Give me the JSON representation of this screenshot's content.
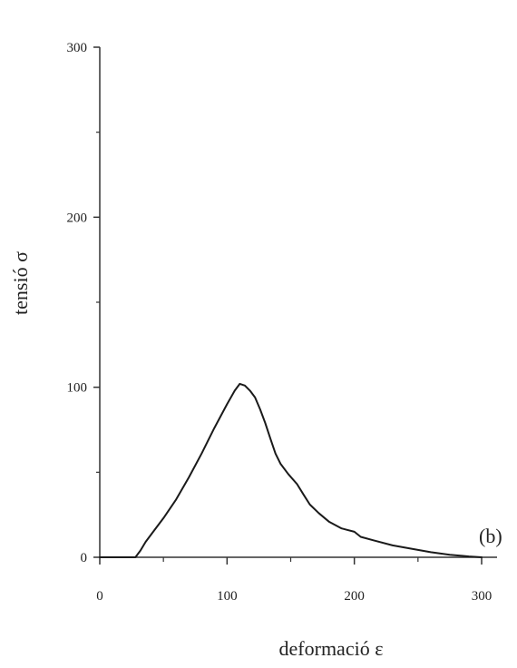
{
  "chart_data": {
    "type": "line",
    "xlabel": "deformació ε",
    "ylabel": "tensió σ",
    "annotation": "(b)",
    "xlim": [
      0,
      310
    ],
    "ylim": [
      0,
      300
    ],
    "x_ticks": [
      0,
      100,
      200,
      300
    ],
    "y_ticks": [
      0,
      100,
      200,
      300
    ],
    "x_minor_ticks": [
      50,
      150,
      250
    ],
    "y_minor_ticks": [
      50,
      150,
      250
    ],
    "grid": false,
    "series": [
      {
        "color": "#1a1a1a",
        "x": [
          0,
          10,
          20,
          28,
          32,
          36,
          42,
          50,
          60,
          70,
          80,
          90,
          100,
          106,
          110,
          114,
          118,
          122,
          126,
          130,
          134,
          138,
          142,
          148,
          155,
          160,
          165,
          172,
          180,
          190,
          200,
          205,
          215,
          230,
          245,
          260,
          275,
          290,
          300
        ],
        "y": [
          0,
          0,
          0,
          0,
          4,
          9,
          15,
          23,
          34,
          47,
          61,
          76,
          90,
          98,
          102,
          101,
          98,
          94,
          87,
          79,
          70,
          61,
          55,
          49,
          43,
          37,
          31,
          26,
          21,
          17,
          15,
          12,
          10,
          7,
          5,
          3,
          1.5,
          0.5,
          0
        ]
      }
    ]
  }
}
